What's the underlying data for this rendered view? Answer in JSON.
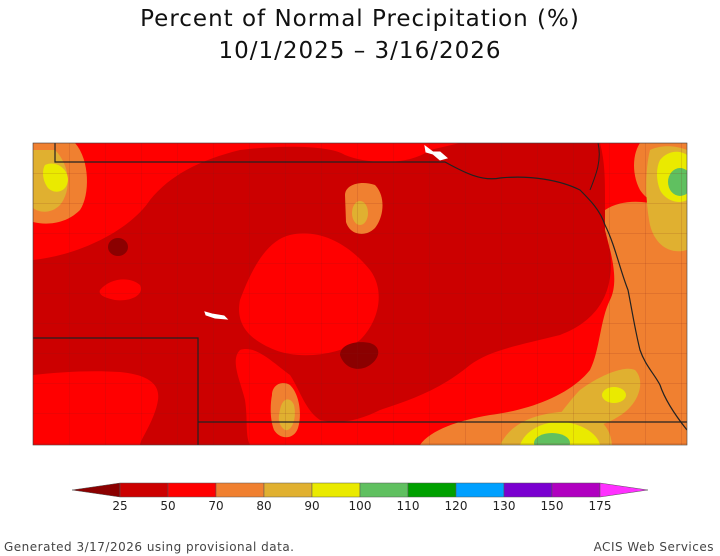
{
  "title": "Percent of Normal Precipitation (%)",
  "subtitle": "10/1/2025 – 3/16/2026",
  "legend": {
    "bins": [
      {
        "color": "#8b0000"
      },
      {
        "color": "#cc0000"
      },
      {
        "color": "#ff0000"
      },
      {
        "color": "#f08030"
      },
      {
        "color": "#e0b030"
      },
      {
        "color": "#eaea00"
      },
      {
        "color": "#60c060"
      },
      {
        "color": "#00a000"
      },
      {
        "color": "#00a0ff"
      },
      {
        "color": "#7a00d0"
      },
      {
        "color": "#b000c0"
      },
      {
        "color": "#ff30ff"
      }
    ],
    "labels": [
      "25",
      "50",
      "70",
      "80",
      "90",
      "100",
      "110",
      "120",
      "130",
      "150",
      "175"
    ]
  },
  "footer": {
    "left": "Generated 3/17/2026 using provisional data.",
    "right": "ACIS Web Services"
  }
}
